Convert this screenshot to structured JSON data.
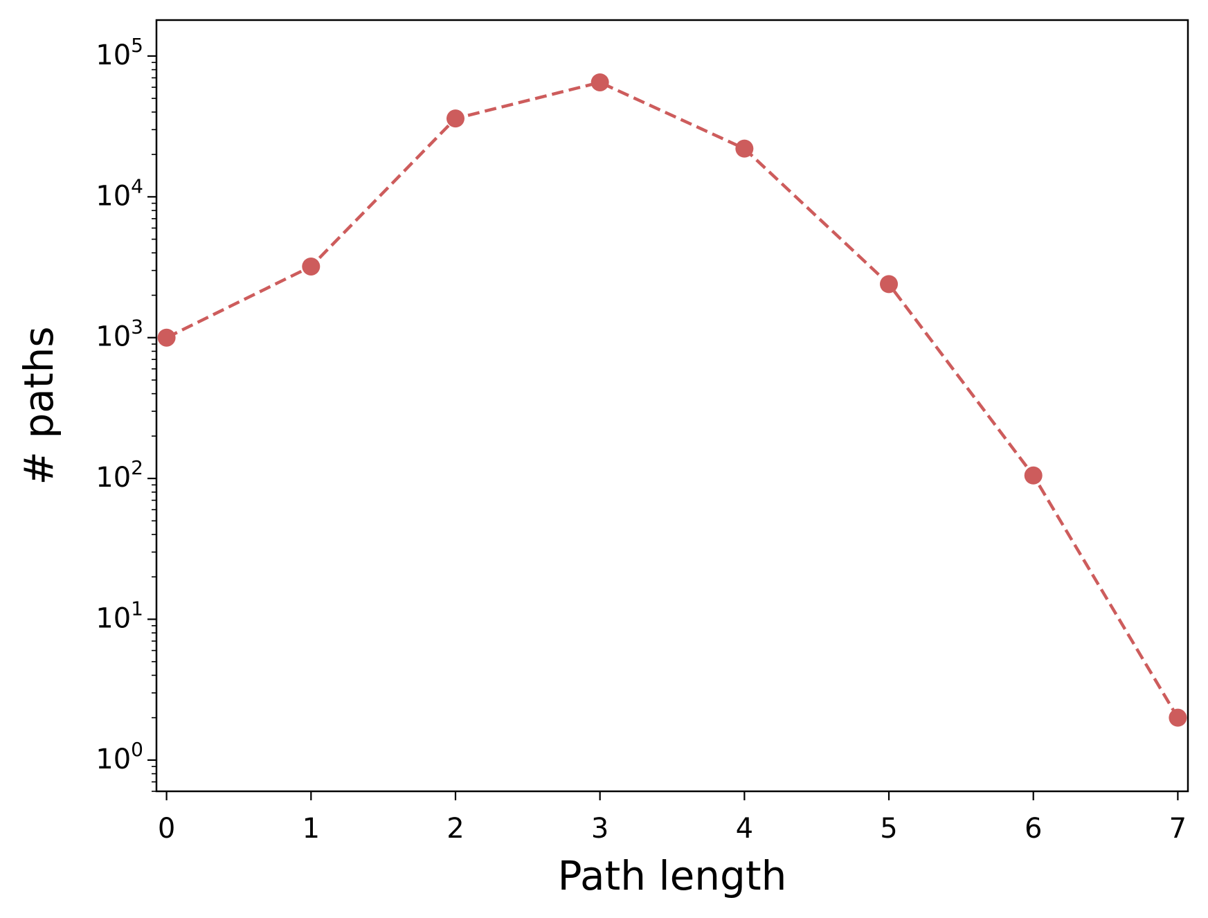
{
  "chart_data": {
    "type": "line",
    "title": "",
    "xlabel": "Path length",
    "ylabel": "# paths",
    "yscale": "log",
    "xlim": [
      -0.07,
      7.07
    ],
    "ylim": [
      0.6,
      180000
    ],
    "x_ticks": [
      0,
      1,
      2,
      3,
      4,
      5,
      6,
      7
    ],
    "y_ticks": [
      {
        "value": 1,
        "base": "10",
        "exp": "0"
      },
      {
        "value": 10,
        "base": "10",
        "exp": "1"
      },
      {
        "value": 100,
        "base": "10",
        "exp": "2"
      },
      {
        "value": 1000,
        "base": "10",
        "exp": "3"
      },
      {
        "value": 10000,
        "base": "10",
        "exp": "4"
      },
      {
        "value": 100000,
        "base": "10",
        "exp": "5"
      }
    ],
    "grid": false,
    "series": [
      {
        "color": "#cd5c5c",
        "line_style": "dashed",
        "marker": "circle",
        "x": [
          0,
          1,
          2,
          3,
          4,
          5,
          6,
          7
        ],
        "y": [
          1000,
          3200,
          36000,
          65000,
          22000,
          2400,
          105,
          2
        ]
      }
    ]
  }
}
